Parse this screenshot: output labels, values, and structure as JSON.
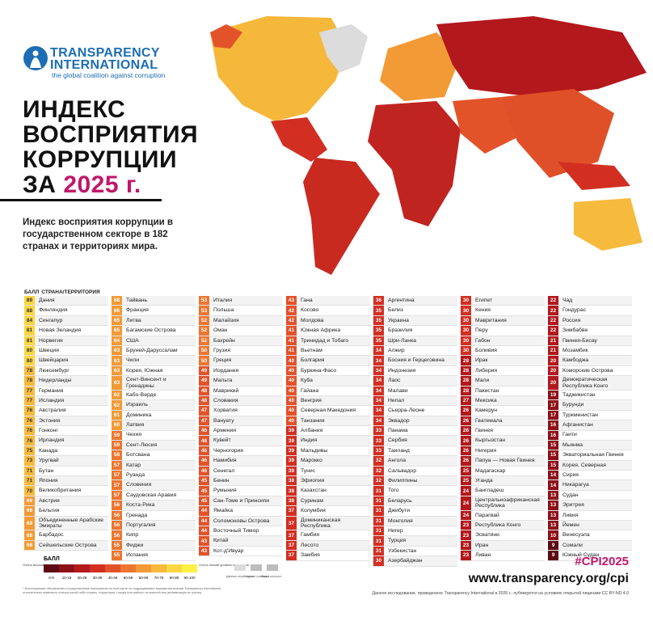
{
  "header": {
    "logo_title": "TRANSPARENCY INTERNATIONAL",
    "logo_tagline": "the global coalition against corruption",
    "title_lines": [
      "ИНДЕКС",
      "ВОСПРИЯТИЯ",
      "КОРРУПЦИИ",
      "ЗА"
    ],
    "year": "2025 г.",
    "subtitle": "Индекс восприятия коррупции в государственном секторе в 182 странах и территориях мира."
  },
  "table": {
    "column_headers": [
      "БАЛЛ",
      "СТРАНА/ТЕРРИТОРИЯ"
    ],
    "columns": [
      [
        [
          89,
          "Дания"
        ],
        [
          88,
          "Финляндия"
        ],
        [
          84,
          "Сингапур"
        ],
        [
          81,
          "Новая Зеландия"
        ],
        [
          81,
          "Норвегия"
        ],
        [
          80,
          "Швеция"
        ],
        [
          80,
          "Швейцария"
        ],
        [
          78,
          "Люксембург"
        ],
        [
          78,
          "Нидерланды"
        ],
        [
          77,
          "Германия"
        ],
        [
          77,
          "Исландия"
        ],
        [
          76,
          "Австралия"
        ],
        [
          76,
          "Эстония"
        ],
        [
          76,
          "Гонконг"
        ],
        [
          76,
          "Ирландия"
        ],
        [
          75,
          "Канада"
        ],
        [
          73,
          "Уругвай"
        ],
        [
          71,
          "Бутан"
        ],
        [
          71,
          "Япония"
        ],
        [
          70,
          "Великобритания"
        ],
        [
          69,
          "Австрия"
        ],
        [
          69,
          "Бельгия"
        ],
        [
          69,
          "Объединенные Арабские Эмираты"
        ],
        [
          68,
          "Барбадос"
        ],
        [
          68,
          "Сейшельские Острова"
        ]
      ],
      [
        [
          68,
          "Тайвань"
        ],
        [
          66,
          "Франция"
        ],
        [
          65,
          "Литва"
        ],
        [
          65,
          "Багамские Острова"
        ],
        [
          64,
          "США"
        ],
        [
          63,
          "Бруней-Даруссалам"
        ],
        [
          63,
          "Чили"
        ],
        [
          63,
          "Корея, Южная"
        ],
        [
          63,
          "Сент-Винсент и Гренадины"
        ],
        [
          62,
          "Кабо-Верде"
        ],
        [
          62,
          "Израиль"
        ],
        [
          61,
          "Доминика"
        ],
        [
          60,
          "Латвия"
        ],
        [
          59,
          "Чехия"
        ],
        [
          59,
          "Сент-Люсия"
        ],
        [
          58,
          "Ботсвана"
        ],
        [
          57,
          "Катар"
        ],
        [
          57,
          "Руанда"
        ],
        [
          57,
          "Словения"
        ],
        [
          57,
          "Саудовская Аравия"
        ],
        [
          56,
          "Коста-Рика"
        ],
        [
          56,
          "Гренада"
        ],
        [
          56,
          "Португалия"
        ],
        [
          56,
          "Кипр"
        ],
        [
          55,
          "Фиджи"
        ],
        [
          55,
          "Испания"
        ]
      ],
      [
        [
          53,
          "Италия"
        ],
        [
          53,
          "Польша"
        ],
        [
          52,
          "Малайзия"
        ],
        [
          52,
          "Оман"
        ],
        [
          52,
          "Бахрейн"
        ],
        [
          50,
          "Грузия"
        ],
        [
          50,
          "Греция"
        ],
        [
          49,
          "Иордания"
        ],
        [
          49,
          "Мальта"
        ],
        [
          48,
          "Маврикий"
        ],
        [
          48,
          "Словакия"
        ],
        [
          47,
          "Хорватия"
        ],
        [
          47,
          "Вануату"
        ],
        [
          46,
          "Армения"
        ],
        [
          46,
          "Кувейт"
        ],
        [
          46,
          "Черногория"
        ],
        [
          46,
          "Намибия"
        ],
        [
          46,
          "Сенегал"
        ],
        [
          45,
          "Бенин"
        ],
        [
          45,
          "Румыния"
        ],
        [
          45,
          "Сан-Томе и Принсипи"
        ],
        [
          44,
          "Ямайка"
        ],
        [
          44,
          "Соломоновы Острова"
        ],
        [
          44,
          "Восточный Тимор"
        ],
        [
          43,
          "Китай"
        ],
        [
          43,
          "Кот-д'Ивуар"
        ]
      ],
      [
        [
          43,
          "Гана"
        ],
        [
          42,
          "Косово"
        ],
        [
          42,
          "Молдова"
        ],
        [
          41,
          "Южная Африка"
        ],
        [
          41,
          "Тринидад и Тобаго"
        ],
        [
          41,
          "Вьетнам"
        ],
        [
          40,
          "Болгария"
        ],
        [
          40,
          "Буркина-Фасо"
        ],
        [
          40,
          "Куба"
        ],
        [
          40,
          "Гайана"
        ],
        [
          40,
          "Венгрия"
        ],
        [
          40,
          "Северная Македония"
        ],
        [
          40,
          "Танзания"
        ],
        [
          39,
          "Албания"
        ],
        [
          39,
          "Индия"
        ],
        [
          39,
          "Мальдивы"
        ],
        [
          39,
          "Марокко"
        ],
        [
          39,
          "Тунис"
        ],
        [
          38,
          "Эфиопия"
        ],
        [
          38,
          "Казахстан"
        ],
        [
          38,
          "Суринам"
        ],
        [
          37,
          "Колумбия"
        ],
        [
          37,
          "Доминиканская Республика"
        ],
        [
          37,
          "Гамбия"
        ],
        [
          37,
          "Лесото"
        ],
        [
          37,
          "Замбия"
        ]
      ],
      [
        [
          36,
          "Аргентина"
        ],
        [
          35,
          "Белиз"
        ],
        [
          35,
          "Украина"
        ],
        [
          35,
          "Бразилия"
        ],
        [
          35,
          "Шри-Ланка"
        ],
        [
          34,
          "Алжир"
        ],
        [
          34,
          "Босния и Герцеговина"
        ],
        [
          34,
          "Индонезия"
        ],
        [
          34,
          "Лаос"
        ],
        [
          34,
          "Малави"
        ],
        [
          34,
          "Непал"
        ],
        [
          34,
          "Сьерра-Леоне"
        ],
        [
          34,
          "Эквадор"
        ],
        [
          33,
          "Панама"
        ],
        [
          33,
          "Сербия"
        ],
        [
          33,
          "Таиланд"
        ],
        [
          32,
          "Ангола"
        ],
        [
          32,
          "Сальвадор"
        ],
        [
          32,
          "Филиппины"
        ],
        [
          31,
          "Того"
        ],
        [
          31,
          "Беларусь"
        ],
        [
          31,
          "Джибути"
        ],
        [
          31,
          "Монголия"
        ],
        [
          31,
          "Нигер"
        ],
        [
          31,
          "Турция"
        ],
        [
          31,
          "Узбекистан"
        ],
        [
          30,
          "Азербайджан"
        ]
      ],
      [
        [
          30,
          "Египет"
        ],
        [
          30,
          "Кения"
        ],
        [
          30,
          "Мавритания"
        ],
        [
          30,
          "Перу"
        ],
        [
          30,
          "Габон"
        ],
        [
          30,
          "Боливия"
        ],
        [
          28,
          "Ирак"
        ],
        [
          28,
          "Либерия"
        ],
        [
          28,
          "Мали"
        ],
        [
          28,
          "Пакистан"
        ],
        [
          27,
          "Мексика"
        ],
        [
          26,
          "Камерун"
        ],
        [
          26,
          "Гватемала"
        ],
        [
          26,
          "Гвинея"
        ],
        [
          26,
          "Кыргызстан"
        ],
        [
          26,
          "Нигерия"
        ],
        [
          26,
          "Папуа — Новая Гвинея"
        ],
        [
          25,
          "Мадагаскар"
        ],
        [
          25,
          "Уганда"
        ],
        [
          24,
          "Бангладеш"
        ],
        [
          24,
          "Центральноафриканская Республика"
        ],
        [
          24,
          "Парагвай"
        ],
        [
          23,
          "Республика Конго"
        ],
        [
          23,
          "Эсватини"
        ],
        [
          23,
          "Иран"
        ],
        [
          23,
          "Ливан"
        ]
      ],
      [
        [
          22,
          "Чад"
        ],
        [
          22,
          "Гондурас"
        ],
        [
          22,
          "Россия"
        ],
        [
          22,
          "Зимбабве"
        ],
        [
          21,
          "Гвинея-Бисау"
        ],
        [
          21,
          "Мозамбик"
        ],
        [
          20,
          "Камбоджа"
        ],
        [
          20,
          "Коморские Острова"
        ],
        [
          20,
          "Демократическая Республика Конго"
        ],
        [
          19,
          "Таджикистан"
        ],
        [
          17,
          "Бурунди"
        ],
        [
          17,
          "Туркменистан"
        ],
        [
          16,
          "Афганистан"
        ],
        [
          16,
          "Гаити"
        ],
        [
          15,
          "Мьянма"
        ],
        [
          15,
          "Экваториальная Гвинея"
        ],
        [
          15,
          "Корея, Северная"
        ],
        [
          14,
          "Сирия"
        ],
        [
          14,
          "Никарагуа"
        ],
        [
          13,
          "Судан"
        ],
        [
          13,
          "Эритрея"
        ],
        [
          13,
          "Ливия"
        ],
        [
          13,
          "Йемен"
        ],
        [
          10,
          "Венесуэла"
        ],
        [
          9,
          "Сомали"
        ],
        [
          9,
          "Южный Судан"
        ]
      ]
    ]
  },
  "legend": {
    "title": "БАЛЛ",
    "low_label": "Очень высокий уровень коррупции",
    "high_label": "Очень низкий уровень коррупции",
    "bins": [
      {
        "label": "0-9",
        "color": "#5c0a14"
      },
      {
        "label": "10-19",
        "color": "#8c1018"
      },
      {
        "label": "20-29",
        "color": "#b3181c"
      },
      {
        "label": "30-39",
        "color": "#d22f22"
      },
      {
        "label": "40-49",
        "color": "#e3532a"
      },
      {
        "label": "50-59",
        "color": "#ec7631"
      },
      {
        "label": "60-69",
        "color": "#f29a36"
      },
      {
        "label": "70-79",
        "color": "#f6ba3c"
      },
      {
        "label": "80-89",
        "color": "#fad643"
      },
      {
        "label": "90-100",
        "color": "#fff046"
      }
    ],
    "extras": [
      "Данные отсутствуют",
      "Спорные границы*",
      "Линия контроля*"
    ]
  },
  "footer": {
    "hashtag": "#CPI2025",
    "url": "www.transparency.org/cpi",
    "note": "* Используемые обозначения и представление материалов на этой карте не подразумевают выражения мнения Transparency International относительно правового статуса какой-либо страны, территории, города или района, их властей или делимитации их границ.",
    "license": "Данное исследование, проведенное Transparency International в 2026 г., публикуется на условиях открытой лицензии CC BY-ND 4.0"
  }
}
